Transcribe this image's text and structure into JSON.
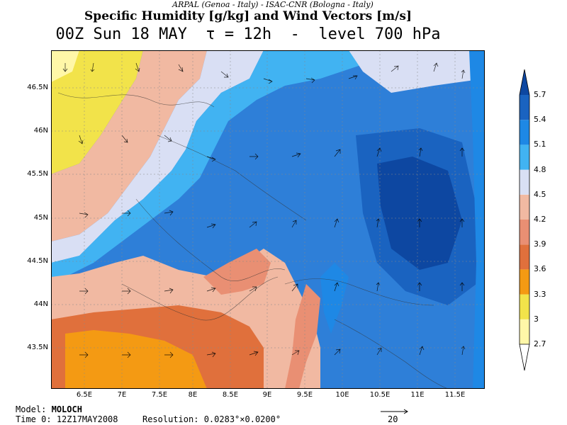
{
  "header": {
    "credit": "ARPAL (Genoa - Italy)  -  ISAC-CNR (Bologna - Italy)",
    "title": "Specific Humidity [g/kg] and Wind Vectors [m/s]",
    "subtitle": "00Z Sun 18 MAY  τ = 12h  -  level 700 hPa"
  },
  "map": {
    "lat_labels": [
      "46.5N",
      "46N",
      "45.5N",
      "45N",
      "44.5N",
      "44N",
      "43.5N"
    ],
    "lon_labels": [
      "6.5E",
      "7E",
      "7.5E",
      "8E",
      "8.5E",
      "9E",
      "9.5E",
      "10E",
      "10.5E",
      "11E",
      "11.5E"
    ],
    "colorbar": {
      "levels": [
        "2.7",
        "3",
        "3.3",
        "3.6",
        "3.9",
        "4.2",
        "4.5",
        "4.8",
        "5.1",
        "5.4",
        "5.7"
      ],
      "colors": [
        "#fff7a8",
        "#f2e34a",
        "#f49a13",
        "#e0703c",
        "#e98f73",
        "#f1b9a2",
        "#d9dff4",
        "#41b3f2",
        "#1e88e5",
        "#1a63c0",
        "#0d47a1"
      ]
    }
  },
  "footer": {
    "model_label": "Model:",
    "model_value": "MOLOCH",
    "time_label": "Time 0:",
    "time_value": "12Z17MAY2008",
    "resolution_label": "Resolution:",
    "resolution_value": "0.0283°×0.0200°",
    "vector_scale": "20"
  }
}
